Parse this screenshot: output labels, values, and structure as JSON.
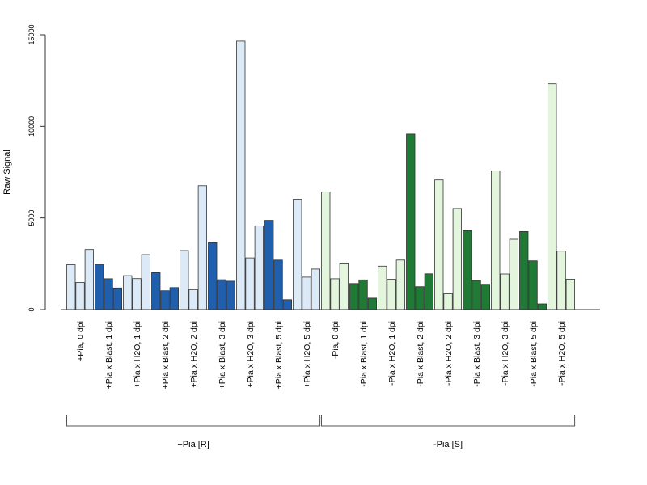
{
  "chart_data": {
    "type": "bar",
    "title": "",
    "ylabel": "Raw Signal",
    "ylim": [
      0,
      15000
    ],
    "yticks": [
      0,
      5000,
      10000,
      15000
    ],
    "grid": false,
    "bars_per_group": 3,
    "colors": {
      "pia_light": "#dce9f7",
      "pia_dark": "#1f5fae",
      "nopia_light": "#e3f5dd",
      "nopia_dark": "#1e7a34",
      "bar_stroke": "#333333",
      "axis": "#333333"
    },
    "categories": [
      {
        "label": "+Pia, 0 dpi",
        "values": [
          2450,
          1480,
          3280
        ],
        "fill": "pia_light"
      },
      {
        "label": "+Pia x Blast, 1 dpi",
        "values": [
          2470,
          1680,
          1180
        ],
        "fill": "pia_dark"
      },
      {
        "label": "+Pia x H2O, 1 dpi",
        "values": [
          1850,
          1690,
          3000
        ],
        "fill": "pia_light"
      },
      {
        "label": "+Pia x Blast, 2 dpi",
        "values": [
          2010,
          1030,
          1200
        ],
        "fill": "pia_dark"
      },
      {
        "label": "+Pia x H2O, 2 dpi",
        "values": [
          3220,
          1090,
          6760
        ],
        "fill": "pia_light"
      },
      {
        "label": "+Pia x Blast, 3 dpi",
        "values": [
          3650,
          1630,
          1550
        ],
        "fill": "pia_dark"
      },
      {
        "label": "+Pia x H2O, 3 dpi",
        "values": [
          14650,
          2820,
          4570
        ],
        "fill": "pia_light"
      },
      {
        "label": "+Pia x Blast, 5 dpi",
        "values": [
          4870,
          2700,
          540
        ],
        "fill": "pia_dark"
      },
      {
        "label": "+Pia x H2O, 5 dpi",
        "values": [
          6020,
          1770,
          2210
        ],
        "fill": "pia_light"
      },
      {
        "label": "-Pia, 0 dpi",
        "values": [
          6420,
          1680,
          2540
        ],
        "fill": "nopia_light"
      },
      {
        "label": "-Pia x Blast, 1 dpi",
        "values": [
          1420,
          1620,
          620
        ],
        "fill": "nopia_dark"
      },
      {
        "label": "-Pia x H2O, 1 dpi",
        "values": [
          2370,
          1650,
          2700
        ],
        "fill": "nopia_light"
      },
      {
        "label": "-Pia x Blast, 2 dpi",
        "values": [
          9580,
          1250,
          1950
        ],
        "fill": "nopia_dark"
      },
      {
        "label": "-Pia x H2O, 2 dpi",
        "values": [
          7070,
          860,
          5520
        ],
        "fill": "nopia_light"
      },
      {
        "label": "-Pia x Blast, 3 dpi",
        "values": [
          4310,
          1590,
          1380
        ],
        "fill": "nopia_dark"
      },
      {
        "label": "-Pia x H2O, 3 dpi",
        "values": [
          7560,
          1940,
          3840
        ],
        "fill": "nopia_light"
      },
      {
        "label": "-Pia x Blast, 5 dpi",
        "values": [
          4260,
          2660,
          310
        ],
        "fill": "nopia_dark"
      },
      {
        "label": "-Pia x H2O, 5 dpi",
        "values": [
          12320,
          3190,
          1660
        ],
        "fill": "nopia_light"
      }
    ],
    "groups": [
      {
        "label": "+Pia [R]",
        "categories": [
          0,
          8
        ]
      },
      {
        "label": "-Pia [S]",
        "categories": [
          9,
          17
        ]
      }
    ]
  }
}
